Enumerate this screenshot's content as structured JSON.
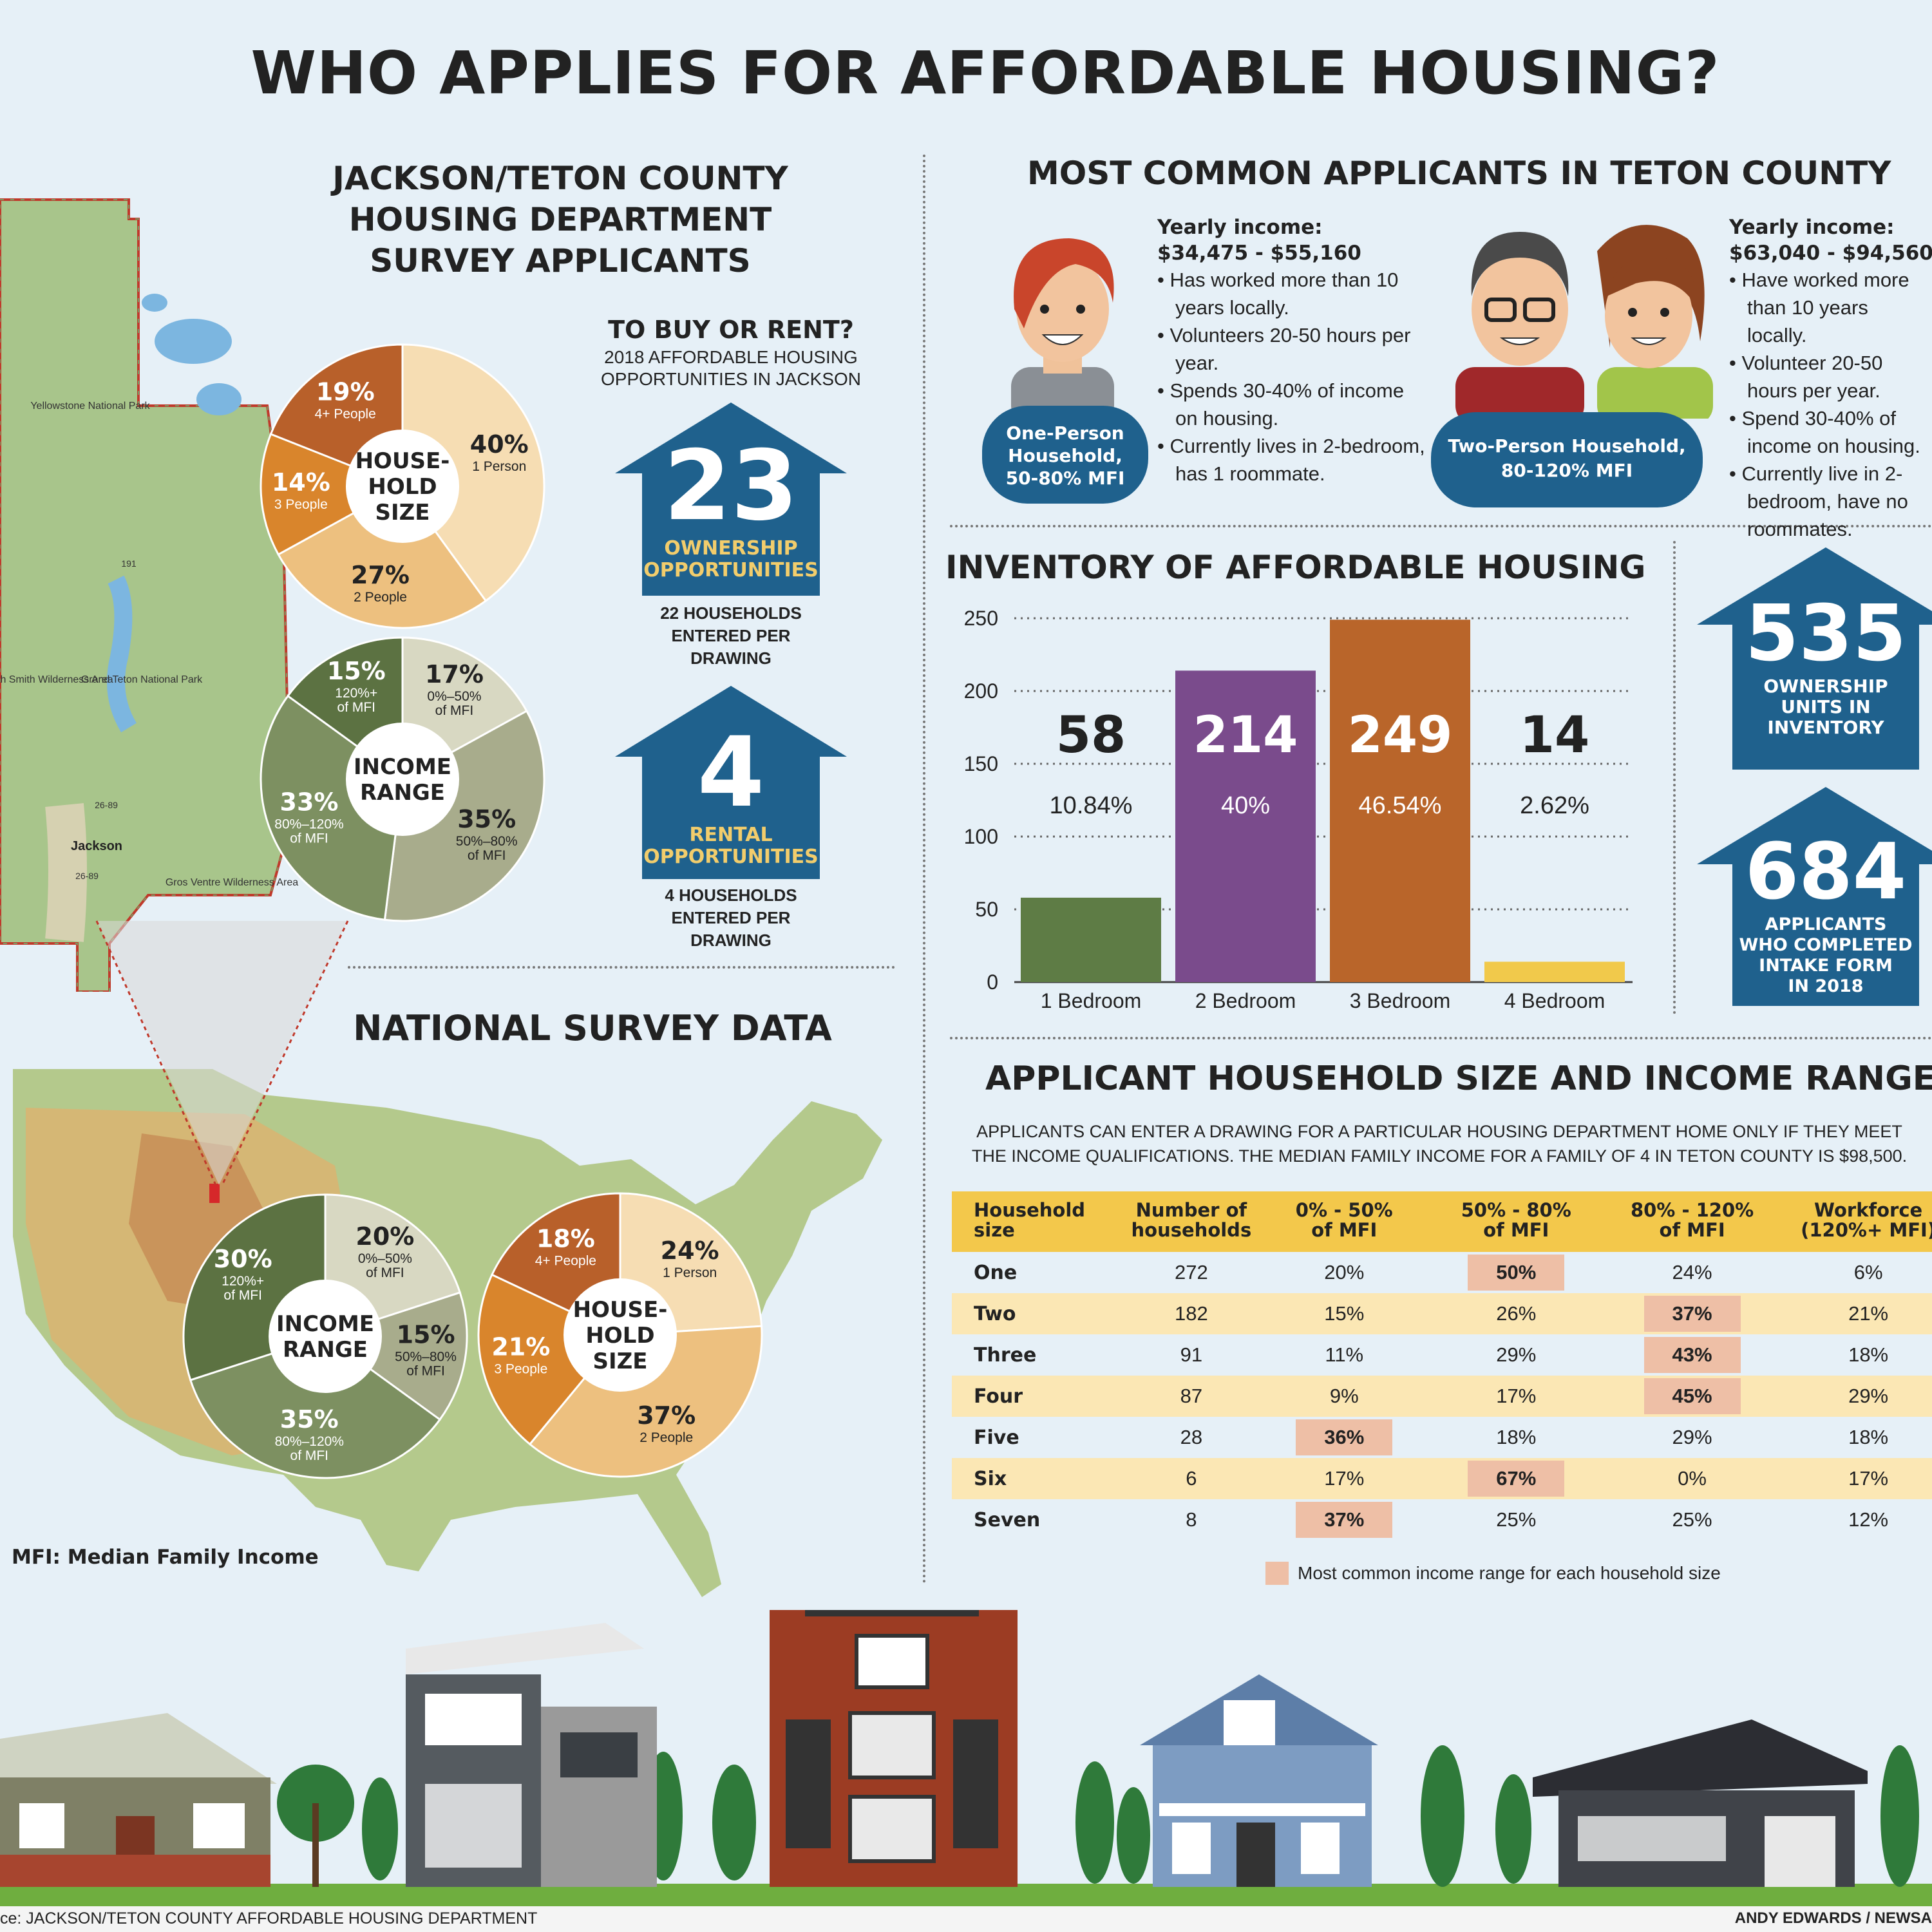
{
  "title": "WHO APPLIES FOR AFFORDABLE HOUSING?",
  "local_section": {
    "title_lines": [
      "JACKSON/TETON COUNTY",
      "HOUSING DEPARTMENT",
      "SURVEY APPLICANTS"
    ],
    "map_labels": {
      "yellowstone": "Yellowstone National Park",
      "grand_teton": "Grand Teton National Park",
      "jedediah": "Jedediah Smith Wilderness Area",
      "jackson": "Jackson",
      "gros_ventre": "Gros Ventre Wilderness Area",
      "r1": "191",
      "r2": "26-89",
      "r3": "26-89"
    }
  },
  "buy_rent": {
    "heading": "TO BUY OR RENT?",
    "sub_lines": [
      "2018 AFFORDABLE HOUSING",
      "OPPORTUNITIES IN JACKSON"
    ],
    "ownership": {
      "value": "23",
      "label_lines": [
        "OWNERSHIP",
        "OPPORTUNITIES"
      ],
      "note_lines": [
        "22 HOUSEHOLDS",
        "ENTERED PER",
        "DRAWING"
      ]
    },
    "rental": {
      "value": "4",
      "label_lines": [
        "RENTAL",
        "OPPORTUNITIES"
      ],
      "note_lines": [
        "4 HOUSEHOLDS",
        "ENTERED PER",
        "DRAWING"
      ]
    }
  },
  "national": {
    "title": "NATIONAL SURVEY DATA",
    "mfi_note": "MFI: Median Family Income"
  },
  "common": {
    "title": "MOST COMMON APPLICANTS IN TETON COUNTY",
    "one": {
      "badge_lines": [
        "One-Person",
        "Household,",
        "50-80% MFI"
      ],
      "income_label": "Yearly income:",
      "income": "$34,475 - $55,160",
      "bullets": [
        "Has worked more than 10 years locally.",
        "Volunteers 20-50 hours per year.",
        "Spends 30-40% of income on housing.",
        "Currently lives in 2-bedroom, has 1 roommate."
      ]
    },
    "two": {
      "badge_lines": [
        "Two-Person Household,",
        "80-120% MFI"
      ],
      "income_label": "Yearly income:",
      "income": "$63,040 - $94,560",
      "bullets": [
        "Have worked more than 10 years locally.",
        "Volunteer 20-50 hours per year.",
        "Spend 30-40% of income on housing.",
        "Currently live in 2-bedroom, have no roommates."
      ]
    }
  },
  "inventory": {
    "title": "INVENTORY OF AFFORDABLE HOUSING",
    "units": {
      "value": "535",
      "label_lines": [
        "OWNERSHIP",
        "UNITS IN",
        "INVENTORY"
      ]
    },
    "applicants": {
      "value": "684",
      "label_lines": [
        "APPLICANTS",
        "WHO COMPLETED",
        "INTAKE FORM",
        "IN 2018"
      ]
    }
  },
  "table_section": {
    "title": "APPLICANT HOUSEHOLD SIZE AND INCOME RANGE",
    "intro_lines": [
      "APPLICANTS CAN ENTER A DRAWING FOR A PARTICULAR HOUSING DEPARTMENT HOME ONLY IF THEY MEET",
      "THE INCOME QUALIFICATIONS. THE MEDIAN FAMILY INCOME FOR A FAMILY OF 4 IN TETON COUNTY IS $98,500."
    ],
    "headers": [
      [
        "Household",
        "size"
      ],
      [
        "Number of",
        "households"
      ],
      [
        "0% - 50%",
        "of MFI"
      ],
      [
        "50% - 80%",
        "of MFI"
      ],
      [
        "80% - 120%",
        "of MFI"
      ],
      [
        "Workforce",
        "(120%+ MFI)"
      ]
    ],
    "rows": [
      {
        "cells": [
          "One",
          "272",
          "20%",
          "50%",
          "24%",
          "6%"
        ],
        "hl": 3
      },
      {
        "cells": [
          "Two",
          "182",
          "15%",
          "26%",
          "37%",
          "21%"
        ],
        "hl": 4
      },
      {
        "cells": [
          "Three",
          "91",
          "11%",
          "29%",
          "43%",
          "18%"
        ],
        "hl": 4
      },
      {
        "cells": [
          "Four",
          "87",
          "9%",
          "17%",
          "45%",
          "29%"
        ],
        "hl": 4
      },
      {
        "cells": [
          "Five",
          "28",
          "36%",
          "18%",
          "29%",
          "18%"
        ],
        "hl": 2
      },
      {
        "cells": [
          "Six",
          "6",
          "17%",
          "67%",
          "0%",
          "17%"
        ],
        "hl": 3
      },
      {
        "cells": [
          "Seven",
          "8",
          "37%",
          "25%",
          "25%",
          "12%"
        ],
        "hl": 2
      }
    ],
    "legend": "Most common income range for each household size"
  },
  "footer": {
    "source": "ce: JACKSON/TETON COUNTY AFFORDABLE HOUSING DEPARTMENT",
    "credit": "ANDY EDWARDS / NEWSA"
  },
  "chart_data": [
    {
      "type": "bar",
      "name": "inventory",
      "categories": [
        "1 Bedroom",
        "2 Bedroom",
        "3 Bedroom",
        "4 Bedroom"
      ],
      "values": [
        58,
        214,
        249,
        14
      ],
      "value_labels": [
        "58",
        "214",
        "249",
        "14"
      ],
      "percent_labels": [
        "10.84%",
        "40%",
        "46.54%",
        "2.62%"
      ],
      "colors": [
        "#5e7c45",
        "#7a4b8c",
        "#b9652a",
        "#f1c94b"
      ],
      "yticks": [
        0,
        50,
        100,
        150,
        200,
        250
      ],
      "ylim": [
        0,
        250
      ],
      "grid": true
    },
    {
      "type": "pie",
      "name": "local_household_size",
      "center_label": [
        "HOUSE-",
        "HOLD",
        "SIZE"
      ],
      "slices": [
        {
          "value": 40,
          "label": "40%",
          "sub": [
            "1 Person"
          ],
          "color": "#f6ddb3"
        },
        {
          "value": 27,
          "label": "27%",
          "sub": [
            "2 People"
          ],
          "color": "#edc07f"
        },
        {
          "value": 14,
          "label": "14%",
          "sub": [
            "3 People"
          ],
          "color": "#d9852c"
        },
        {
          "value": 19,
          "label": "19%",
          "sub": [
            "4+ People"
          ],
          "color": "#b8602a"
        }
      ]
    },
    {
      "type": "pie",
      "name": "local_income_range",
      "center_label": [
        "INCOME",
        "RANGE"
      ],
      "slices": [
        {
          "value": 17,
          "label": "17%",
          "sub": [
            "0%–50%",
            "of MFI"
          ],
          "color": "#d8d8c2"
        },
        {
          "value": 35,
          "label": "35%",
          "sub": [
            "50%–80%",
            "of MFI"
          ],
          "color": "#a8ac8c"
        },
        {
          "value": 33,
          "label": "33%",
          "sub": [
            "80%–120%",
            "of MFI"
          ],
          "color": "#7d9061"
        },
        {
          "value": 15,
          "label": "15%",
          "sub": [
            "120%+",
            "of MFI"
          ],
          "color": "#5c7242"
        }
      ]
    },
    {
      "type": "pie",
      "name": "national_income_range",
      "center_label": [
        "INCOME",
        "RANGE"
      ],
      "slices": [
        {
          "value": 20,
          "label": "20%",
          "sub": [
            "0%–50%",
            "of MFI"
          ],
          "color": "#d8d8c2"
        },
        {
          "value": 15,
          "label": "15%",
          "sub": [
            "50%–80%",
            "of MFI"
          ],
          "color": "#a8ac8c"
        },
        {
          "value": 35,
          "label": "35%",
          "sub": [
            "80%–120%",
            "of MFI"
          ],
          "color": "#7d9061"
        },
        {
          "value": 30,
          "label": "30%",
          "sub": [
            "120%+",
            "of MFI"
          ],
          "color": "#5c7242"
        }
      ]
    },
    {
      "type": "pie",
      "name": "national_household_size",
      "center_label": [
        "HOUSE-",
        "HOLD",
        "SIZE"
      ],
      "slices": [
        {
          "value": 24,
          "label": "24%",
          "sub": [
            "1 Person"
          ],
          "color": "#f6ddb3"
        },
        {
          "value": 37,
          "label": "37%",
          "sub": [
            "2 People"
          ],
          "color": "#edc07f"
        },
        {
          "value": 21,
          "label": "21%",
          "sub": [
            "3 People"
          ],
          "color": "#d9852c"
        },
        {
          "value": 18,
          "label": "18%",
          "sub": [
            "4+ People"
          ],
          "color": "#b8602a"
        }
      ]
    }
  ]
}
